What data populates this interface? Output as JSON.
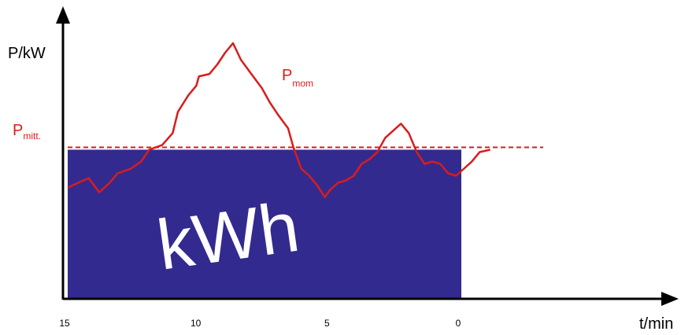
{
  "chart_data": {
    "type": "area",
    "xlabel": "t/min",
    "ylabel": "P/kW",
    "x_ticks": [
      15,
      10,
      5,
      0
    ],
    "xlim": [
      15,
      -10
    ],
    "ylim": [
      0,
      100
    ],
    "area_label": "kWh",
    "average": {
      "symbol": "P",
      "subscript": "mitt.",
      "value": 64,
      "color": "#d91c1c",
      "style": "dashed"
    },
    "momentary": {
      "symbol": "P",
      "subscript": "mom",
      "color": "#d91c1c",
      "x": [
        15,
        14.6,
        14.2,
        13.8,
        13.4,
        13.1,
        12.6,
        12.2,
        11.9,
        11.4,
        11.0,
        10.8,
        10.4,
        10.1,
        10.0,
        9.6,
        9.3,
        9.0,
        8.7,
        8.4,
        8.0,
        7.6,
        7.3,
        7.0,
        6.6,
        6.4,
        6.1,
        5.8,
        5.5,
        5.2,
        5.0,
        4.7,
        4.4,
        4.1,
        3.8,
        3.5,
        3.2,
        2.9,
        2.6,
        2.3,
        2.0,
        1.7,
        1.4,
        1.1,
        0.8,
        0.5,
        0.2,
        -0.1,
        -0.4,
        -0.7,
        -1.1
      ],
      "y": [
        47,
        49,
        51,
        45,
        49,
        53,
        55,
        58,
        63,
        65,
        70,
        79,
        86,
        90,
        94,
        95,
        99,
        104,
        108,
        101,
        95,
        89,
        83,
        78,
        72,
        64,
        55,
        52,
        48,
        43,
        46,
        49,
        50,
        52,
        57,
        59,
        62,
        68,
        71,
        74,
        70,
        62,
        57,
        58,
        57,
        53,
        52,
        55,
        58,
        62,
        63
      ]
    }
  }
}
